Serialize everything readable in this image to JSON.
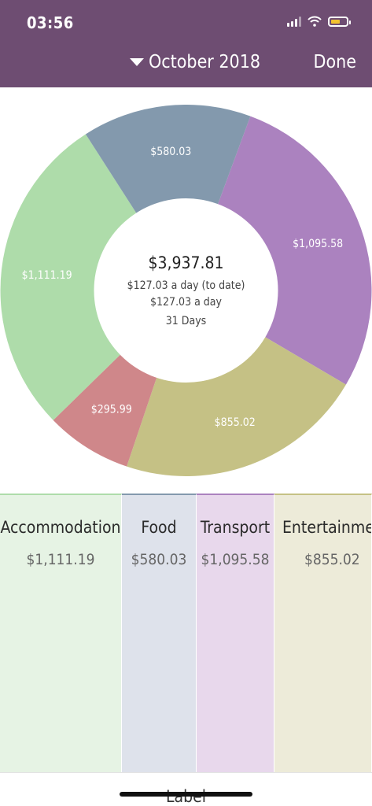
{
  "status": {
    "time": "03:56"
  },
  "header": {
    "month": "October 2018",
    "done": "Done"
  },
  "summary": {
    "total": "$3,937.81",
    "per_day_to_date": "$127.03 a day (to date)",
    "per_day": "$127.03 a day",
    "days": "31 Days"
  },
  "chart_data": {
    "type": "pie",
    "donut": true,
    "slices": [
      {
        "label": "$1,095.58",
        "value": 1095.58,
        "color": "#ab82bf"
      },
      {
        "label": "$855.02",
        "value": 855.02,
        "color": "#c5c185"
      },
      {
        "label": "$295.99",
        "value": 295.99,
        "color": "#cf878a"
      },
      {
        "label": "$1,111.19",
        "value": 1111.19,
        "color": "#aedcaa"
      },
      {
        "label": "$580.03",
        "value": 580.03,
        "color": "#8399ad"
      }
    ]
  },
  "categories": [
    {
      "name": "Accommodation",
      "amount": "$1,111.19",
      "bg": "#e6f3e4",
      "accent": "#aedcaa"
    },
    {
      "name": "Food",
      "amount": "$580.03",
      "bg": "#dee2eb",
      "accent": "#8399ad"
    },
    {
      "name": "Transport",
      "amount": "$1,095.58",
      "bg": "#e8d8ec",
      "accent": "#ab82bf"
    },
    {
      "name": "Entertainment",
      "amount": "$855.02",
      "bg": "#edebd9",
      "accent": "#c5c185"
    }
  ],
  "footer": {
    "label": "Label"
  }
}
